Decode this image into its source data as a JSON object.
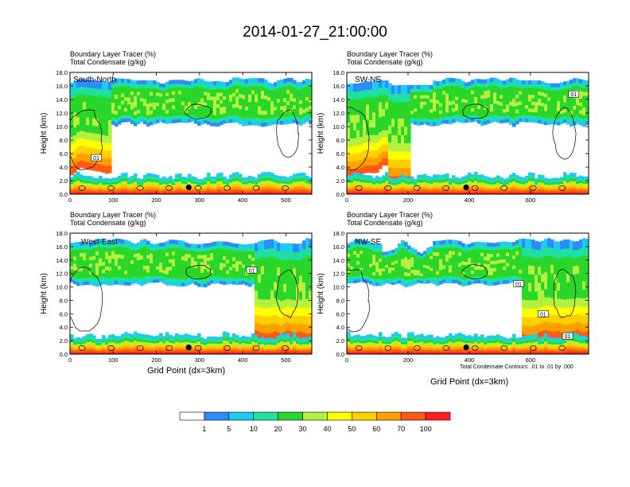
{
  "title": "2014-01-27_21:00:00",
  "field_label": "Boundary Layer Tracer   (%)",
  "contour_label": "Total Condensate   (g/kg)",
  "ylabel": "Height (km)",
  "xlabel": "Grid Point (dx=3km)",
  "contour_note": "Total Condensate Contours: .01 to .01 by .000",
  "colorbar": {
    "colors": [
      "#ffffff",
      "#2a8cff",
      "#1ecbf0",
      "#20e0a0",
      "#2ad62a",
      "#b4f040",
      "#ffff00",
      "#ffd000",
      "#ffa000",
      "#ff5a14",
      "#ff1e1e"
    ],
    "labels": [
      "1",
      "5",
      "10",
      "20",
      "30",
      "40",
      "50",
      "60",
      "70",
      "100"
    ]
  },
  "chart_data": [
    {
      "type": "heatmap",
      "panel": "South-North",
      "xlim": [
        0,
        560
      ],
      "ylim": [
        0,
        18
      ],
      "xticks": [
        "0",
        "100",
        "200",
        "300",
        "400",
        "500"
      ],
      "yticks": [
        "0.0",
        "2.0",
        "4.0",
        "6.0",
        "8.0",
        "10.0",
        "12.0",
        "14.0",
        "16.0",
        "18.0"
      ],
      "contour_level": "01",
      "marker_x": 275,
      "marker_y": 1.0
    },
    {
      "type": "heatmap",
      "panel": "SW-NE",
      "xlim": [
        0,
        790
      ],
      "ylim": [
        0,
        18
      ],
      "xticks": [
        "0",
        "200",
        "400",
        "600"
      ],
      "yticks": [
        "0.0",
        "2.0",
        "4.0",
        "6.0",
        "8.0",
        "10.0",
        "12.0",
        "14.0",
        "16.0",
        "18.0"
      ],
      "contour_level": "01",
      "marker_x": 390,
      "marker_y": 1.0
    },
    {
      "type": "heatmap",
      "panel": "West-East",
      "xlim": [
        0,
        560
      ],
      "ylim": [
        0,
        18
      ],
      "xticks": [
        "0",
        "100",
        "200",
        "300",
        "400",
        "500"
      ],
      "yticks": [
        "0.0",
        "2.0",
        "4.0",
        "6.0",
        "8.0",
        "10.0",
        "12.0",
        "14.0",
        "16.0",
        "18.0"
      ],
      "contour_level": "01",
      "marker_x": 275,
      "marker_y": 1.0
    },
    {
      "type": "heatmap",
      "panel": "NW-SE",
      "xlim": [
        0,
        790
      ],
      "ylim": [
        0,
        18
      ],
      "xticks": [
        "0",
        "200",
        "400",
        "600"
      ],
      "yticks": [
        "0.0",
        "2.0",
        "4.0",
        "6.0",
        "8.0",
        "10.0",
        "12.0",
        "14.0",
        "16.0",
        "18.0"
      ],
      "contour_level": "01",
      "marker_x": 390,
      "marker_y": 1.0
    }
  ]
}
